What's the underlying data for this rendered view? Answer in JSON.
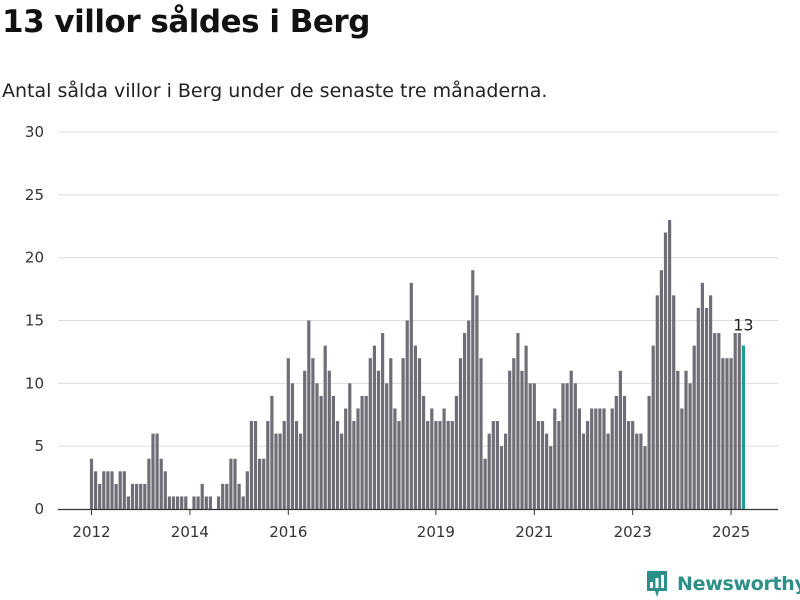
{
  "title": "13 villor såldes i Berg",
  "subtitle": "Antal sålda villor i Berg under de senaste tre månaderna.",
  "brand": {
    "name": "Newsworthy",
    "icon": "newsworthy-logo-icon"
  },
  "colors": {
    "bar": "#6f6e76",
    "highlight": "#1a9e96",
    "grid": "#dddddd",
    "axis": "#333333",
    "brand": "#2c8f88"
  },
  "chart_data": {
    "type": "bar",
    "title": "13 villor såldes i Berg",
    "subtitle": "Antal sålda villor i Berg under de senaste tre månaderna.",
    "xlabel": "",
    "ylabel": "",
    "ylim": [
      0,
      30
    ],
    "yticks": [
      0,
      5,
      10,
      15,
      20,
      25,
      30
    ],
    "grid": true,
    "legend": "none",
    "start_year": 2012,
    "start_month": 1,
    "x_tick_labels": [
      {
        "label": "2012",
        "year": 2012
      },
      {
        "label": "2014",
        "year": 2014
      },
      {
        "label": "2016",
        "year": 2016
      },
      {
        "label": "2019",
        "year": 2019
      },
      {
        "label": "2021",
        "year": 2021
      },
      {
        "label": "2023",
        "year": 2023
      },
      {
        "label": "2025",
        "year": 2025
      }
    ],
    "highlight_label": "13",
    "values": [
      4,
      3,
      2,
      3,
      3,
      3,
      2,
      3,
      3,
      1,
      2,
      2,
      2,
      2,
      4,
      6,
      6,
      4,
      3,
      1,
      1,
      1,
      1,
      1,
      0,
      1,
      1,
      2,
      1,
      1,
      0,
      1,
      2,
      2,
      4,
      4,
      2,
      1,
      3,
      7,
      7,
      4,
      4,
      7,
      9,
      6,
      6,
      7,
      12,
      10,
      7,
      6,
      11,
      15,
      12,
      10,
      9,
      13,
      11,
      9,
      7,
      6,
      8,
      10,
      7,
      8,
      9,
      9,
      12,
      13,
      11,
      14,
      10,
      12,
      8,
      7,
      12,
      15,
      18,
      13,
      12,
      9,
      7,
      8,
      7,
      7,
      8,
      7,
      7,
      9,
      12,
      14,
      15,
      19,
      17,
      12,
      4,
      6,
      7,
      7,
      5,
      6,
      11,
      12,
      14,
      11,
      13,
      10,
      10,
      7,
      7,
      6,
      5,
      8,
      7,
      10,
      10,
      11,
      10,
      8,
      6,
      7,
      8,
      8,
      8,
      8,
      6,
      8,
      9,
      11,
      9,
      7,
      7,
      6,
      6,
      5,
      9,
      13,
      17,
      19,
      22,
      23,
      17,
      11,
      8,
      11,
      10,
      13,
      16,
      18,
      16,
      17,
      14,
      14,
      12,
      12,
      12,
      14,
      14,
      13
    ]
  }
}
